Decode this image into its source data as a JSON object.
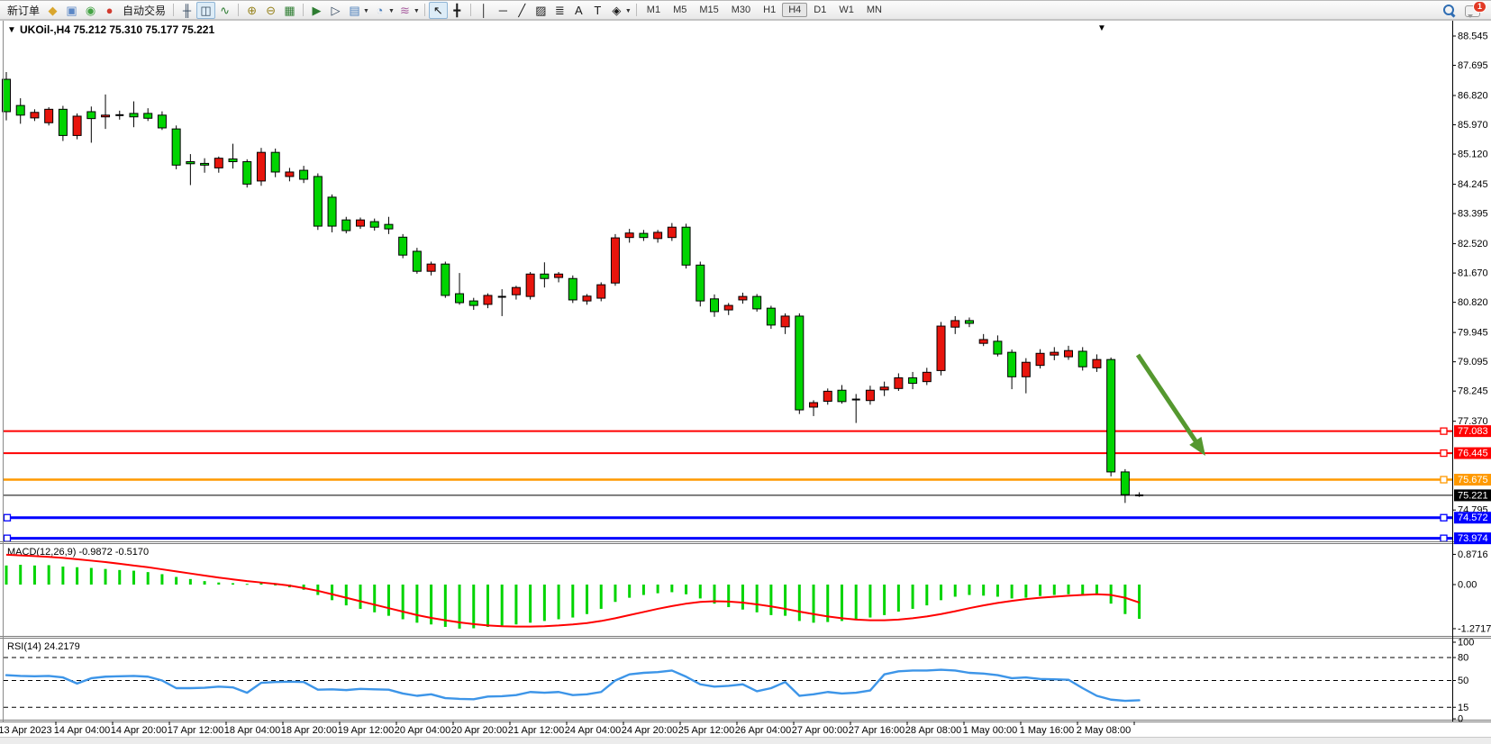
{
  "toolbar": {
    "items": [
      {
        "name": "new-order-button",
        "type": "text",
        "label": "新订单"
      },
      {
        "name": "order-book-icon",
        "type": "icon",
        "glyph": "◆",
        "color": "#D9A62E"
      },
      {
        "name": "market-watch-icon",
        "type": "icon",
        "glyph": "▣",
        "color": "#5B87C5"
      },
      {
        "name": "signals-icon",
        "type": "icon",
        "glyph": "◉",
        "color": "#44A344"
      },
      {
        "name": "autotrade-icon",
        "type": "icon",
        "glyph": "●",
        "color": "#D23B2F"
      },
      {
        "name": "autotrade-button",
        "type": "text",
        "label": "自动交易"
      },
      {
        "name": "sep-1",
        "type": "sep"
      },
      {
        "name": "bar-chart-icon",
        "type": "icon",
        "glyph": "╫",
        "color": "#33475e"
      },
      {
        "name": "candlestick-chart-icon",
        "type": "icon",
        "glyph": "◫",
        "color": "#33475e",
        "active": true
      },
      {
        "name": "line-chart-icon",
        "type": "icon",
        "glyph": "∿",
        "color": "#2E7D32"
      },
      {
        "name": "sep-2",
        "type": "sep"
      },
      {
        "name": "zoom-in-icon",
        "type": "icon",
        "glyph": "⊕",
        "color": "#96821c"
      },
      {
        "name": "zoom-out-icon",
        "type": "icon",
        "glyph": "⊖",
        "color": "#96821c"
      },
      {
        "name": "tile-windows-icon",
        "type": "icon",
        "glyph": "▦",
        "color": "#2E7D32"
      },
      {
        "name": "sep-3",
        "type": "sep"
      },
      {
        "name": "auto-scroll-icon",
        "type": "icon",
        "glyph": "▶",
        "color": "#2E7D32"
      },
      {
        "name": "chart-shift-icon",
        "type": "icon",
        "glyph": "▷",
        "color": "#33475e"
      },
      {
        "name": "new-chart-icon",
        "type": "icon",
        "glyph": "▤",
        "color": "#4a7ebb",
        "dropdown": true
      },
      {
        "name": "period-clock-icon",
        "type": "icon",
        "glyph": "◔",
        "color": "#4a7ebb",
        "dropdown": true
      },
      {
        "name": "indicators-icon",
        "type": "icon",
        "glyph": "≋",
        "color": "#a85fa0",
        "dropdown": true
      },
      {
        "name": "sep-4",
        "type": "sep"
      },
      {
        "name": "cursor-icon",
        "type": "icon",
        "glyph": "↖",
        "color": "#1a1a1a",
        "active": true
      },
      {
        "name": "crosshair-icon",
        "type": "icon",
        "glyph": "╋",
        "color": "#1a1a1a"
      },
      {
        "name": "sep-5",
        "type": "sep"
      },
      {
        "name": "vertical-line-icon",
        "type": "icon",
        "glyph": "│",
        "color": "#1a1a1a"
      },
      {
        "name": "horizontal-line-icon",
        "type": "icon",
        "glyph": "─",
        "color": "#1a1a1a"
      },
      {
        "name": "trendline-icon",
        "type": "icon",
        "glyph": "╱",
        "color": "#1a1a1a"
      },
      {
        "name": "channel-icon",
        "type": "icon",
        "glyph": "▨",
        "color": "#1a1a1a"
      },
      {
        "name": "fibonacci-icon",
        "type": "icon",
        "glyph": "≣",
        "color": "#1a1a1a"
      },
      {
        "name": "text-icon",
        "type": "icon",
        "glyph": "A",
        "color": "#1a1a1a"
      },
      {
        "name": "label-icon",
        "type": "icon",
        "glyph": "T",
        "color": "#1a1a1a"
      },
      {
        "name": "shapes-icon",
        "type": "icon",
        "glyph": "◈",
        "color": "#1a1a1a",
        "dropdown": true
      },
      {
        "name": "sep-6",
        "type": "sep"
      },
      {
        "name": "tf-m1-button",
        "type": "tf",
        "label": "M1"
      },
      {
        "name": "tf-m5-button",
        "type": "tf",
        "label": "M5"
      },
      {
        "name": "tf-m15-button",
        "type": "tf",
        "label": "M15"
      },
      {
        "name": "tf-m30-button",
        "type": "tf",
        "label": "M30"
      },
      {
        "name": "tf-h1-button",
        "type": "tf",
        "label": "H1"
      },
      {
        "name": "tf-h4-button",
        "type": "tf",
        "label": "H4",
        "active": true
      },
      {
        "name": "tf-d1-button",
        "type": "tf",
        "label": "D1"
      },
      {
        "name": "tf-w1-button",
        "type": "tf",
        "label": "W1"
      },
      {
        "name": "tf-mn-button",
        "type": "tf",
        "label": "MN"
      }
    ],
    "chat_badge": "1"
  },
  "chart": {
    "collapse_arrow": "▼",
    "symbol_title": "UKOil-,H4",
    "ohlc_display": "75.212 75.310 75.177 75.221",
    "top_right_arrow": "▼"
  },
  "chart_data": {
    "type": "candlestick",
    "symbol": "UKOil-",
    "timeframe": "H4",
    "title": "UKOil-,H4",
    "current_bar": {
      "open": 75.212,
      "high": 75.31,
      "low": 75.177,
      "close": 75.221
    },
    "price_axis_ticks": [
      88.545,
      87.695,
      86.82,
      85.97,
      85.12,
      84.245,
      83.395,
      82.52,
      81.67,
      80.82,
      79.945,
      79.095,
      78.245,
      77.37,
      74.795
    ],
    "hlines": [
      {
        "price": 77.083,
        "label": "77.083",
        "color": "#FF0000",
        "width": 2,
        "marker_right": true,
        "marker_left": false
      },
      {
        "price": 76.445,
        "label": "76.445",
        "color": "#FF0000",
        "width": 2,
        "marker_right": true,
        "marker_left": false
      },
      {
        "price": 75.675,
        "label": "75.675",
        "color": "#FF9900",
        "width": 2.5,
        "marker_right": true,
        "marker_left": false
      },
      {
        "price": 75.221,
        "label": "75.221",
        "color": "#000000",
        "width": 1,
        "marker_right": false,
        "marker_left": false
      },
      {
        "price": 74.572,
        "label": "74.572",
        "color": "#0000FF",
        "width": 3,
        "marker_right": true,
        "marker_left": true
      },
      {
        "price": 73.974,
        "label": "73.974",
        "color": "#0000FF",
        "width": 3,
        "marker_right": true,
        "marker_left": true
      }
    ],
    "x_labels": [
      "13 Apr 2023",
      "14 Apr 04:00",
      "14 Apr 20:00",
      "17 Apr 12:00",
      "18 Apr 04:00",
      "18 Apr 20:00",
      "19 Apr 12:00",
      "20 Apr 04:00",
      "20 Apr 20:00",
      "21 Apr 12:00",
      "24 Apr 04:00",
      "24 Apr 20:00",
      "25 Apr 12:00",
      "26 Apr 04:00",
      "27 Apr 00:00",
      "27 Apr 16:00",
      "28 Apr 08:00",
      "1 May 00:00",
      "1 May 16:00",
      "2 May 08:00"
    ],
    "candles": [
      [
        87.29,
        87.5,
        86.1,
        86.35
      ],
      [
        86.53,
        86.74,
        86.0,
        86.25
      ],
      [
        86.17,
        86.42,
        86.08,
        86.33
      ],
      [
        86.03,
        86.48,
        85.95,
        86.42
      ],
      [
        86.42,
        86.52,
        85.5,
        85.66
      ],
      [
        85.66,
        86.3,
        85.55,
        86.22
      ],
      [
        86.35,
        86.5,
        85.45,
        86.15
      ],
      [
        86.2,
        86.85,
        85.85,
        86.25
      ],
      [
        86.25,
        86.38,
        86.12,
        86.22
      ],
      [
        86.3,
        86.65,
        85.9,
        86.2
      ],
      [
        86.3,
        86.45,
        86.08,
        86.16
      ],
      [
        86.25,
        86.36,
        85.82,
        85.88
      ],
      [
        85.85,
        85.95,
        84.68,
        84.8
      ],
      [
        84.9,
        85.12,
        84.22,
        84.84
      ],
      [
        84.85,
        85.0,
        84.58,
        84.8
      ],
      [
        84.72,
        85.05,
        84.58,
        85.0
      ],
      [
        84.98,
        85.42,
        84.7,
        84.9
      ],
      [
        84.9,
        84.97,
        84.15,
        84.25
      ],
      [
        84.34,
        85.3,
        84.2,
        85.17
      ],
      [
        85.17,
        85.28,
        84.45,
        84.6
      ],
      [
        84.47,
        84.72,
        84.33,
        84.6
      ],
      [
        84.65,
        84.78,
        84.28,
        84.39
      ],
      [
        84.47,
        84.56,
        82.92,
        83.03
      ],
      [
        83.87,
        83.95,
        82.85,
        83.03
      ],
      [
        83.21,
        83.3,
        82.82,
        82.9
      ],
      [
        83.03,
        83.28,
        82.95,
        83.21
      ],
      [
        83.16,
        83.25,
        82.9,
        83.0
      ],
      [
        83.08,
        83.3,
        82.8,
        82.95
      ],
      [
        82.71,
        82.8,
        82.1,
        82.19
      ],
      [
        82.3,
        82.4,
        81.65,
        81.72
      ],
      [
        81.72,
        82.0,
        81.6,
        81.93
      ],
      [
        81.93,
        82.0,
        80.95,
        81.02
      ],
      [
        81.07,
        81.67,
        80.75,
        80.81
      ],
      [
        80.86,
        80.95,
        80.6,
        80.73
      ],
      [
        80.76,
        81.08,
        80.65,
        81.02
      ],
      [
        80.94,
        81.2,
        80.42,
        80.98
      ],
      [
        81.04,
        81.3,
        80.9,
        81.25
      ],
      [
        80.99,
        81.7,
        80.9,
        81.64
      ],
      [
        81.64,
        81.98,
        81.25,
        81.51
      ],
      [
        81.54,
        81.7,
        81.4,
        81.64
      ],
      [
        81.51,
        81.6,
        80.8,
        80.89
      ],
      [
        80.86,
        81.06,
        80.75,
        81.0
      ],
      [
        80.94,
        81.4,
        80.85,
        81.33
      ],
      [
        81.38,
        82.8,
        81.3,
        82.69
      ],
      [
        82.7,
        82.95,
        82.55,
        82.83
      ],
      [
        82.82,
        82.92,
        82.6,
        82.7
      ],
      [
        82.67,
        82.92,
        82.55,
        82.85
      ],
      [
        82.7,
        83.12,
        82.6,
        83.0
      ],
      [
        83.0,
        83.1,
        81.8,
        81.9
      ],
      [
        81.9,
        82.0,
        80.7,
        80.86
      ],
      [
        80.92,
        81.05,
        80.4,
        80.55
      ],
      [
        80.6,
        80.8,
        80.45,
        80.73
      ],
      [
        80.89,
        81.1,
        80.78,
        80.99
      ],
      [
        80.99,
        81.06,
        80.55,
        80.63
      ],
      [
        80.65,
        80.72,
        80.05,
        80.16
      ],
      [
        80.11,
        80.5,
        79.9,
        80.42
      ],
      [
        80.42,
        80.5,
        77.58,
        77.7
      ],
      [
        77.78,
        77.98,
        77.52,
        77.91
      ],
      [
        77.95,
        78.32,
        77.85,
        78.24
      ],
      [
        78.27,
        78.42,
        77.88,
        77.94
      ],
      [
        78.0,
        78.16,
        77.32,
        77.98
      ],
      [
        77.97,
        78.4,
        77.85,
        78.27
      ],
      [
        78.28,
        78.52,
        78.1,
        78.36
      ],
      [
        78.32,
        78.76,
        78.25,
        78.63
      ],
      [
        78.63,
        78.8,
        78.3,
        78.47
      ],
      [
        78.52,
        78.92,
        78.42,
        78.79
      ],
      [
        78.84,
        80.25,
        78.7,
        80.13
      ],
      [
        80.1,
        80.42,
        79.9,
        80.29
      ],
      [
        80.29,
        80.38,
        80.1,
        80.21
      ],
      [
        79.63,
        79.9,
        79.55,
        79.74
      ],
      [
        79.69,
        79.86,
        79.25,
        79.32
      ],
      [
        79.37,
        79.45,
        78.3,
        78.66
      ],
      [
        78.66,
        79.2,
        78.18,
        79.08
      ],
      [
        78.99,
        79.46,
        78.9,
        79.34
      ],
      [
        79.29,
        79.52,
        79.14,
        79.37
      ],
      [
        79.24,
        79.56,
        79.15,
        79.42
      ],
      [
        79.4,
        79.52,
        78.84,
        78.95
      ],
      [
        78.92,
        79.31,
        78.8,
        79.16
      ],
      [
        79.16,
        79.22,
        75.77,
        75.9
      ],
      [
        75.9,
        75.98,
        75.0,
        75.24
      ],
      [
        75.212,
        75.31,
        75.177,
        75.221
      ]
    ],
    "macd": {
      "label": "MACD(12,26,9) -0.9872 -0.5170",
      "tick_labels": [
        "0.8716",
        "0.00",
        "-1.2717"
      ],
      "tick_values": [
        0.8716,
        0,
        -1.2717
      ],
      "histogram": [
        0.55,
        0.57,
        0.55,
        0.56,
        0.52,
        0.5,
        0.48,
        0.45,
        0.42,
        0.4,
        0.36,
        0.3,
        0.22,
        0.16,
        0.1,
        0.06,
        0.04,
        0.02,
        0.04,
        -0.02,
        -0.08,
        -0.15,
        -0.3,
        -0.45,
        -0.6,
        -0.7,
        -0.8,
        -0.9,
        -1.0,
        -1.1,
        -1.15,
        -1.22,
        -1.27,
        -1.26,
        -1.22,
        -1.18,
        -1.15,
        -1.1,
        -1.05,
        -1.0,
        -0.95,
        -0.85,
        -0.7,
        -0.5,
        -0.38,
        -0.3,
        -0.25,
        -0.22,
        -0.28,
        -0.4,
        -0.55,
        -0.65,
        -0.72,
        -0.8,
        -0.88,
        -0.9,
        -1.05,
        -1.1,
        -1.08,
        -1.05,
        -1.02,
        -0.95,
        -0.88,
        -0.78,
        -0.7,
        -0.6,
        -0.45,
        -0.35,
        -0.3,
        -0.32,
        -0.35,
        -0.4,
        -0.38,
        -0.33,
        -0.3,
        -0.28,
        -0.3,
        -0.28,
        -0.55,
        -0.85,
        -0.9872
      ],
      "signal": [
        0.86,
        0.84,
        0.82,
        0.8,
        0.77,
        0.73,
        0.69,
        0.65,
        0.6,
        0.55,
        0.5,
        0.44,
        0.38,
        0.32,
        0.26,
        0.2,
        0.15,
        0.1,
        0.06,
        0.02,
        -0.03,
        -0.1,
        -0.18,
        -0.28,
        -0.38,
        -0.48,
        -0.58,
        -0.68,
        -0.78,
        -0.88,
        -0.96,
        -1.03,
        -1.09,
        -1.14,
        -1.18,
        -1.2,
        -1.21,
        -1.21,
        -1.2,
        -1.18,
        -1.15,
        -1.11,
        -1.05,
        -0.97,
        -0.88,
        -0.79,
        -0.7,
        -0.62,
        -0.55,
        -0.5,
        -0.48,
        -0.49,
        -0.52,
        -0.57,
        -0.63,
        -0.7,
        -0.78,
        -0.85,
        -0.92,
        -0.97,
        -1.01,
        -1.03,
        -1.03,
        -1.01,
        -0.97,
        -0.92,
        -0.85,
        -0.77,
        -0.68,
        -0.6,
        -0.53,
        -0.47,
        -0.42,
        -0.38,
        -0.35,
        -0.32,
        -0.3,
        -0.28,
        -0.3,
        -0.38,
        -0.517
      ]
    },
    "rsi": {
      "label": "RSI(14) 24.2179",
      "tick_labels": [
        "100",
        "80",
        "50",
        "15",
        "0"
      ],
      "tick_values": [
        100,
        80,
        50,
        15,
        0
      ],
      "levels": [
        80,
        50,
        15
      ],
      "values": [
        57,
        56,
        55.5,
        56,
        54,
        46,
        53,
        55,
        55.5,
        56,
        55,
        50,
        40,
        40,
        40.5,
        42,
        41,
        34,
        47,
        48,
        48.5,
        48,
        38,
        38.5,
        37.5,
        39,
        38.5,
        38,
        33,
        30,
        32,
        27,
        26,
        25.5,
        29,
        29.5,
        31,
        35,
        34,
        35,
        31,
        32,
        35,
        50,
        58,
        60,
        61,
        63,
        55,
        45,
        42,
        43,
        45,
        36,
        40,
        48,
        30,
        32,
        35,
        33,
        34,
        37,
        58,
        62,
        63,
        63,
        64,
        63,
        60,
        59,
        57,
        53,
        54,
        52,
        51.5,
        51,
        40,
        30,
        25,
        23.5,
        24.2179
      ]
    },
    "annotation_arrow": {
      "from": [
        1263,
        393
      ],
      "to": [
        1338,
        505
      ],
      "color": "#55982F"
    },
    "colors": {
      "bull_candle": "#E8150D",
      "bear_candle": "#00D400",
      "wick": "#000000",
      "macd_histogram": "#00D400",
      "macd_signal": "#FF0000",
      "rsi_line": "#3D95E8",
      "label_text_on_fill": "#FFFFFF",
      "axis_text": "#000000"
    }
  }
}
